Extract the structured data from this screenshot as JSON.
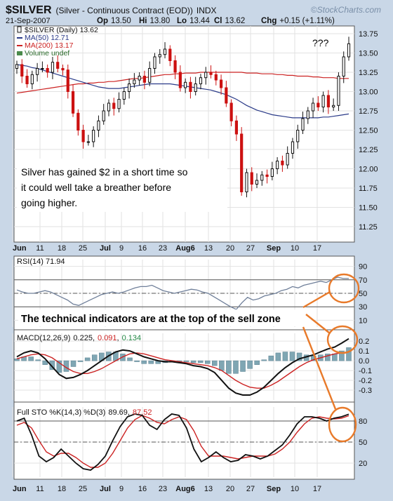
{
  "header": {
    "symbol": "$SILVER",
    "description": "(Silver - Continuous Contract (EOD))",
    "exchange": "INDX",
    "date": "21-Sep-2007",
    "ohlc": [
      {
        "k": "Op",
        "v": "13.50"
      },
      {
        "k": "Hi",
        "v": "13.80"
      },
      {
        "k": "Lo",
        "v": "13.44"
      },
      {
        "k": "Cl",
        "v": "13.62"
      },
      {
        "k": "Chg",
        "v": "+0.15 (+1.11%)"
      }
    ],
    "watermark": "©StockCharts.com"
  },
  "colors": {
    "background": "#c9d7e7",
    "panel": "#ffffff",
    "grid": "#e2e2e2",
    "up": "#111111",
    "down": "#cc1111",
    "ma50": "#2a3a88",
    "ma200": "#cc2222",
    "macd_hist": "#7fa6b3",
    "annotation": "#e87a2a",
    "sig_red": "#cc2222",
    "sig_green": "#228844"
  },
  "annotations": {
    "price_text": "Silver has gained $2 in a short time so it could well take a breather before going higher.",
    "question": "???",
    "indicator_text": "The technical indicators are at the top of the sell zone"
  },
  "x_axis_labels": [
    "Jun",
    "11",
    "18",
    "25",
    "Jul",
    "9",
    "16",
    "23",
    "Aug6",
    "13",
    "20",
    "27",
    "Sep",
    "10",
    "17"
  ],
  "chart_data": [
    {
      "type": "candlestick",
      "legend": [
        {
          "label": "$SILVER (Daily) 13.62",
          "icon": "candle"
        },
        {
          "label": "MA(50) 12.71",
          "icon": "line"
        },
        {
          "label": "MA(200) 13.17",
          "icon": "line"
        },
        {
          "label": "Volume undef",
          "icon": "volume"
        }
      ],
      "ylim": [
        11.05,
        13.85
      ],
      "y_ticks": [
        11.25,
        11.5,
        11.75,
        12.0,
        12.25,
        12.5,
        12.75,
        13.0,
        13.25,
        13.5,
        13.75
      ],
      "closes": [
        13.35,
        13.2,
        13.1,
        13.22,
        13.3,
        13.3,
        13.25,
        13.38,
        13.3,
        13.28,
        13.0,
        12.72,
        12.5,
        12.35,
        12.35,
        12.5,
        12.62,
        12.75,
        12.85,
        12.78,
        12.9,
        13.0,
        13.1,
        13.15,
        13.2,
        13.12,
        13.3,
        13.45,
        13.48,
        13.55,
        13.4,
        13.25,
        13.05,
        13.12,
        13.0,
        13.1,
        13.18,
        13.25,
        13.22,
        13.15,
        13.05,
        12.85,
        12.62,
        12.45,
        11.7,
        11.95,
        11.8,
        11.85,
        11.92,
        11.9,
        12.0,
        12.1,
        12.05,
        12.2,
        12.35,
        12.5,
        12.65,
        12.75,
        12.85,
        12.8,
        12.95,
        12.8,
        12.82,
        13.2,
        13.45,
        13.62
      ],
      "ma50": [
        13.35,
        13.34,
        13.33,
        13.31,
        13.3,
        13.28,
        13.26,
        13.24,
        13.22,
        13.2,
        13.18,
        13.16,
        13.14,
        13.12,
        13.1,
        13.08,
        13.06,
        13.05,
        13.04,
        13.04,
        13.04,
        13.05,
        13.06,
        13.07,
        13.08,
        13.09,
        13.1,
        13.1,
        13.1,
        13.1,
        13.1,
        13.09,
        13.08,
        13.07,
        13.06,
        13.05,
        13.04,
        13.03,
        13.02,
        13.0,
        12.98,
        12.96,
        12.93,
        12.9,
        12.86,
        12.82,
        12.79,
        12.76,
        12.74,
        12.72,
        12.7,
        12.69,
        12.68,
        12.67,
        12.66,
        12.66,
        12.66,
        12.66,
        12.66,
        12.66,
        12.67,
        12.67,
        12.68,
        12.69,
        12.7,
        12.71
      ],
      "ma200": [
        12.98,
        12.99,
        13.0,
        13.01,
        13.02,
        13.03,
        13.04,
        13.05,
        13.06,
        13.07,
        13.08,
        13.09,
        13.1,
        13.1,
        13.11,
        13.11,
        13.12,
        13.12,
        13.13,
        13.13,
        13.14,
        13.15,
        13.16,
        13.17,
        13.17,
        13.18,
        13.19,
        13.2,
        13.21,
        13.22,
        13.22,
        13.23,
        13.23,
        13.24,
        13.24,
        13.24,
        13.25,
        13.25,
        13.25,
        13.25,
        13.25,
        13.25,
        13.25,
        13.25,
        13.25,
        13.24,
        13.24,
        13.24,
        13.23,
        13.23,
        13.23,
        13.22,
        13.22,
        13.21,
        13.21,
        13.2,
        13.2,
        13.2,
        13.19,
        13.19,
        13.18,
        13.18,
        13.18,
        13.17,
        13.17,
        13.17
      ]
    },
    {
      "type": "line",
      "legend": "RSI(14) 71.94",
      "ylim": [
        0,
        100
      ],
      "y_ticks": [
        10,
        30,
        50,
        70,
        90
      ],
      "ref_lines": [
        30,
        50,
        70
      ],
      "values": [
        55,
        52,
        50,
        50,
        52,
        54,
        52,
        48,
        44,
        40,
        34,
        32,
        36,
        40,
        44,
        48,
        50,
        52,
        50,
        52,
        55,
        58,
        60,
        60,
        62,
        58,
        54,
        52,
        50,
        52,
        54,
        56,
        55,
        52,
        50,
        45,
        40,
        35,
        30,
        26,
        36,
        44,
        40,
        42,
        46,
        48,
        50,
        54,
        56,
        60,
        58,
        62,
        64,
        66,
        68,
        66,
        70,
        74,
        72,
        71.94
      ]
    },
    {
      "type": "line",
      "legend": [
        {
          "label": "MACD(12,26,9)",
          "value": "0.225",
          "color": "#111111"
        },
        {
          "label": "",
          "value": "0.091",
          "color": "#cc2222"
        },
        {
          "label": "",
          "value": "0.134",
          "color": "#228844"
        }
      ],
      "ylim": [
        -0.4,
        0.28
      ],
      "y_ticks": [
        -0.3,
        -0.2,
        -0.1,
        0.0,
        0.1,
        0.2
      ],
      "macd": [
        0.04,
        0.08,
        0.1,
        0.08,
        0.02,
        -0.06,
        -0.14,
        -0.18,
        -0.17,
        -0.14,
        -0.1,
        -0.05,
        0.0,
        0.05,
        0.09,
        0.11,
        0.1,
        0.07,
        0.04,
        0.02,
        0.0,
        -0.01,
        -0.01,
        -0.02,
        -0.03,
        -0.05,
        -0.06,
        -0.08,
        -0.12,
        -0.2,
        -0.28,
        -0.33,
        -0.35,
        -0.35,
        -0.32,
        -0.27,
        -0.2,
        -0.13,
        -0.07,
        -0.02,
        0.02,
        0.04,
        0.06,
        0.09,
        0.12,
        0.14,
        0.18,
        0.225
      ],
      "signal": [
        0.02,
        0.04,
        0.06,
        0.07,
        0.06,
        0.03,
        -0.02,
        -0.07,
        -0.11,
        -0.13,
        -0.13,
        -0.11,
        -0.08,
        -0.04,
        0.0,
        0.04,
        0.07,
        0.08,
        0.07,
        0.05,
        0.03,
        0.01,
        0.0,
        -0.01,
        -0.02,
        -0.03,
        -0.04,
        -0.05,
        -0.07,
        -0.1,
        -0.15,
        -0.2,
        -0.24,
        -0.27,
        -0.28,
        -0.28,
        -0.25,
        -0.21,
        -0.16,
        -0.11,
        -0.06,
        -0.02,
        0.01,
        0.03,
        0.05,
        0.07,
        0.08,
        0.091
      ],
      "histogram": [
        0.02,
        0.04,
        0.04,
        0.01,
        -0.04,
        -0.09,
        -0.12,
        -0.11,
        -0.06,
        -0.01,
        0.03,
        0.06,
        0.08,
        0.09,
        0.09,
        0.07,
        0.03,
        -0.01,
        -0.03,
        -0.03,
        -0.03,
        -0.02,
        -0.01,
        -0.01,
        -0.01,
        -0.02,
        -0.02,
        -0.03,
        -0.05,
        -0.1,
        -0.13,
        -0.13,
        -0.11,
        -0.08,
        -0.04,
        0.01,
        0.05,
        0.08,
        0.09,
        0.09,
        0.08,
        0.06,
        0.05,
        0.06,
        0.07,
        0.07,
        0.1,
        0.134
      ]
    },
    {
      "type": "line",
      "legend": [
        {
          "label": "Full STO %K(14,3) %D(3)",
          "value": "89.69",
          "color": "#111111"
        },
        {
          "label": "",
          "value": "87.52",
          "color": "#cc2222"
        }
      ],
      "ylim": [
        0,
        100
      ],
      "y_ticks": [
        20,
        50,
        80
      ],
      "ref_lines": [
        50,
        80
      ],
      "k": [
        80,
        84,
        60,
        30,
        22,
        28,
        40,
        30,
        20,
        12,
        10,
        18,
        30,
        52,
        72,
        86,
        90,
        88,
        74,
        68,
        82,
        90,
        88,
        70,
        40,
        22,
        28,
        36,
        28,
        22,
        24,
        32,
        30,
        26,
        30,
        38,
        46,
        60,
        76,
        86,
        86,
        84,
        80,
        84,
        86,
        89.69
      ],
      "d": [
        74,
        78,
        70,
        52,
        36,
        30,
        34,
        34,
        28,
        20,
        14,
        14,
        20,
        34,
        52,
        70,
        82,
        88,
        84,
        78,
        76,
        82,
        86,
        82,
        66,
        44,
        30,
        30,
        30,
        28,
        26,
        28,
        30,
        30,
        30,
        33,
        40,
        50,
        64,
        76,
        84,
        86,
        84,
        83,
        84,
        87.52
      ]
    }
  ]
}
